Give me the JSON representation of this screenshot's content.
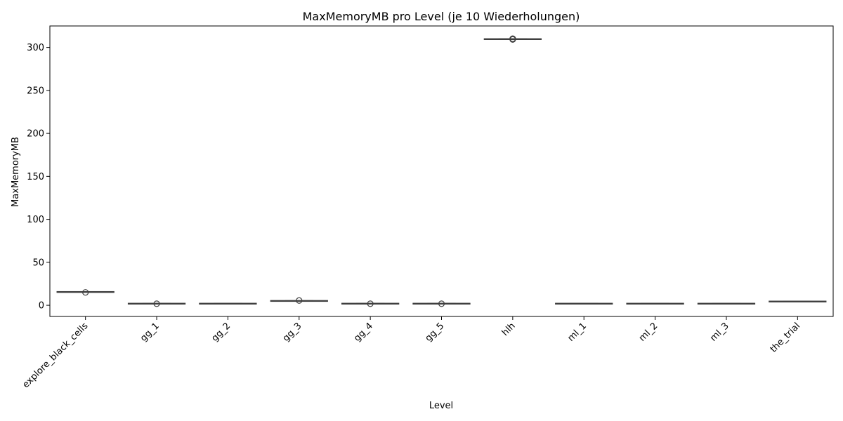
{
  "chart_data": {
    "type": "box",
    "title": "MaxMemoryMB pro Level (je 10 Wiederholungen)",
    "xlabel": "Level",
    "ylabel": "MaxMemoryMB",
    "ylim": [
      -13,
      325
    ],
    "yticks": [
      0,
      50,
      100,
      150,
      200,
      250,
      300
    ],
    "grid": false,
    "categories": [
      "explore_black_cells",
      "gg_1",
      "gg_2",
      "gg_3",
      "gg_4",
      "gg_5",
      "hlh",
      "ml_1",
      "ml_2",
      "ml_3",
      "the_trial"
    ],
    "boxes": [
      {
        "median": 15.5,
        "q1": 15.3,
        "q3": 15.7,
        "whisker_low": 15.2,
        "whisker_high": 15.8,
        "outliers": [
          15.0
        ]
      },
      {
        "median": 2.0,
        "q1": 1.9,
        "q3": 2.1,
        "whisker_low": 1.8,
        "whisker_high": 2.2,
        "outliers": [
          1.8
        ]
      },
      {
        "median": 2.0,
        "q1": 1.9,
        "q3": 2.1,
        "whisker_low": 1.8,
        "whisker_high": 2.2,
        "outliers": []
      },
      {
        "median": 5.2,
        "q1": 5.1,
        "q3": 5.3,
        "whisker_low": 5.0,
        "whisker_high": 5.4,
        "outliers": [
          5.6
        ]
      },
      {
        "median": 2.0,
        "q1": 1.9,
        "q3": 2.1,
        "whisker_low": 1.8,
        "whisker_high": 2.2,
        "outliers": [
          1.8
        ]
      },
      {
        "median": 2.0,
        "q1": 1.9,
        "q3": 2.1,
        "whisker_low": 1.8,
        "whisker_high": 2.2,
        "outliers": [
          1.8
        ]
      },
      {
        "median": 309.8,
        "q1": 309.7,
        "q3": 309.9,
        "whisker_low": 309.6,
        "whisker_high": 310.0,
        "outliers": [
          309.3,
          310.2
        ]
      },
      {
        "median": 2.0,
        "q1": 1.9,
        "q3": 2.1,
        "whisker_low": 1.8,
        "whisker_high": 2.2,
        "outliers": []
      },
      {
        "median": 2.0,
        "q1": 1.9,
        "q3": 2.1,
        "whisker_low": 1.8,
        "whisker_high": 2.2,
        "outliers": []
      },
      {
        "median": 2.0,
        "q1": 1.9,
        "q3": 2.1,
        "whisker_low": 1.8,
        "whisker_high": 2.2,
        "outliers": []
      },
      {
        "median": 4.5,
        "q1": 4.4,
        "q3": 4.6,
        "whisker_low": 4.3,
        "whisker_high": 4.7,
        "outliers": []
      }
    ],
    "colors": {
      "box_edge": "#3f3f3f",
      "box_fill": "#ffffff",
      "axis": "#000000"
    }
  }
}
